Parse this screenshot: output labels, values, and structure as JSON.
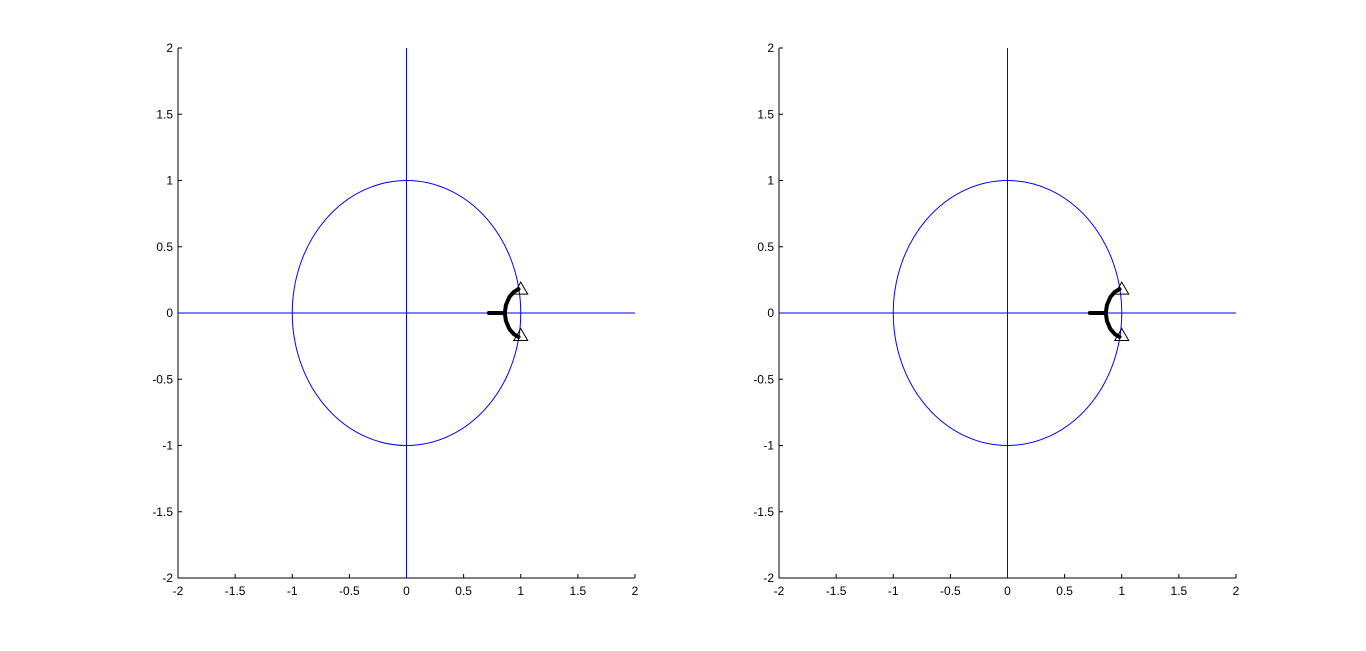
{
  "chart_data": [
    {
      "type": "line",
      "title": "",
      "xlabel": "",
      "ylabel": "",
      "xlim": [
        -2,
        2
      ],
      "ylim": [
        -2,
        2
      ],
      "xticks": [
        -2,
        -1.5,
        -1,
        -0.5,
        0,
        0.5,
        1,
        1.5,
        2
      ],
      "yticks": [
        -2,
        -1.5,
        -1,
        -0.5,
        0,
        0.5,
        1,
        1.5,
        2
      ],
      "xtick_labels": [
        "-2",
        "-1.5",
        "-1",
        "-0.5",
        "0",
        "0.5",
        "1",
        "1.5",
        "2"
      ],
      "ytick_labels": [
        "-2",
        "-1.5",
        "-1",
        "-0.5",
        "0",
        "0.5",
        "1",
        "1.5",
        "2"
      ],
      "grid": false,
      "line_color": "#0000ff",
      "path_color": "#000000",
      "unit_circle": {
        "center": [
          0,
          0
        ],
        "radius": 1
      },
      "axis_lines": {
        "horizontal_y": 0,
        "vertical_x": 0
      },
      "series": [
        {
          "points": [
            [
              0.72,
              0
            ],
            [
              0.8,
              0
            ],
            [
              0.86,
              0
            ]
          ]
        },
        {
          "points": [
            [
              0.86,
              0
            ],
            [
              0.87,
              0.06
            ],
            [
              0.9,
              0.12
            ],
            [
              0.94,
              0.16
            ],
            [
              0.98,
              0.18
            ]
          ]
        },
        {
          "points": [
            [
              0.86,
              0
            ],
            [
              0.87,
              -0.06
            ],
            [
              0.9,
              -0.12
            ],
            [
              0.94,
              -0.16
            ],
            [
              0.98,
              -0.18
            ]
          ]
        }
      ],
      "markers": [
        {
          "x": 1.0,
          "y": 0.18,
          "symbol": "triangle"
        },
        {
          "x": 1.0,
          "y": -0.17,
          "symbol": "triangle"
        }
      ]
    },
    {
      "type": "line",
      "title": "",
      "xlabel": "",
      "ylabel": "",
      "xlim": [
        -2,
        2
      ],
      "ylim": [
        -2,
        2
      ],
      "xticks": [
        -2,
        -1.5,
        -1,
        -0.5,
        0,
        0.5,
        1,
        1.5,
        2
      ],
      "yticks": [
        -2,
        -1.5,
        -1,
        -0.5,
        0,
        0.5,
        1,
        1.5,
        2
      ],
      "xtick_labels": [
        "-2",
        "-1.5",
        "-1",
        "-0.5",
        "0",
        "0.5",
        "1",
        "1.5",
        "2"
      ],
      "ytick_labels": [
        "-2",
        "-1.5",
        "-1",
        "-0.5",
        "0",
        "0.5",
        "1",
        "1.5",
        "2"
      ],
      "grid": false,
      "line_color": "#0000ff",
      "path_color": "#000000",
      "unit_circle": {
        "center": [
          0,
          0
        ],
        "radius": 1
      },
      "axis_lines": {
        "horizontal_y": 0,
        "vertical_x": 0
      },
      "series": [
        {
          "points": [
            [
              0.72,
              0
            ],
            [
              0.8,
              0
            ],
            [
              0.86,
              0
            ]
          ]
        },
        {
          "points": [
            [
              0.86,
              0
            ],
            [
              0.87,
              0.06
            ],
            [
              0.9,
              0.12
            ],
            [
              0.94,
              0.16
            ],
            [
              0.98,
              0.18
            ]
          ]
        },
        {
          "points": [
            [
              0.86,
              0
            ],
            [
              0.87,
              -0.06
            ],
            [
              0.9,
              -0.12
            ],
            [
              0.94,
              -0.16
            ],
            [
              0.98,
              -0.18
            ]
          ]
        }
      ],
      "markers": [
        {
          "x": 1.0,
          "y": 0.18,
          "symbol": "triangle"
        },
        {
          "x": 1.0,
          "y": -0.17,
          "symbol": "triangle"
        }
      ]
    }
  ]
}
